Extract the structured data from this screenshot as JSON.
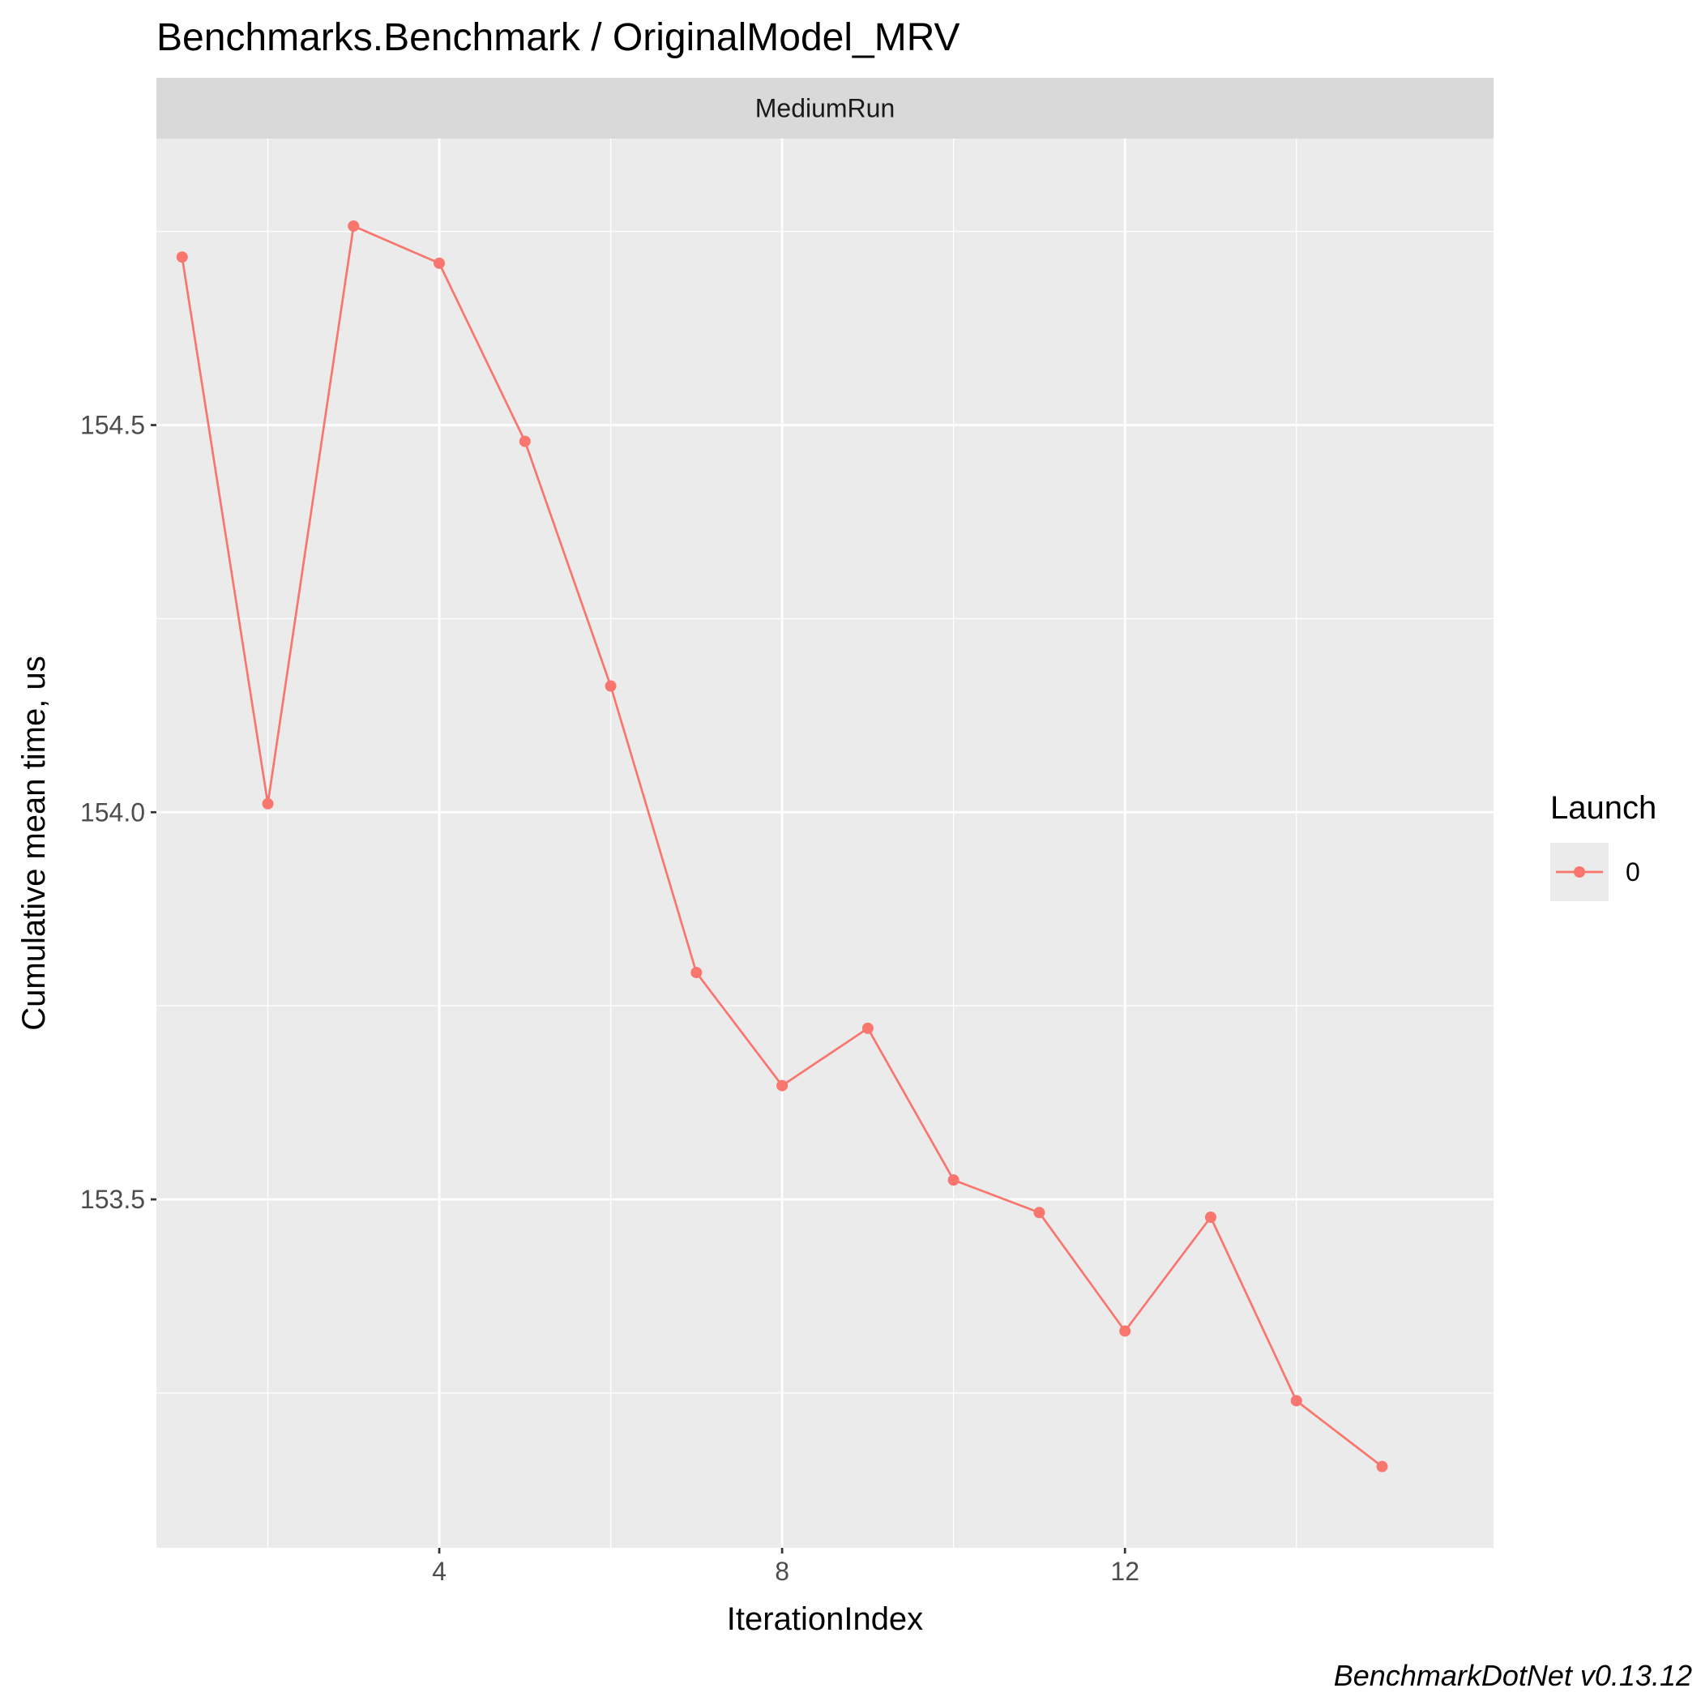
{
  "chart_data": {
    "type": "line",
    "title": "Benchmarks.Benchmark / OriginalModel_MRV",
    "facet_label": "MediumRun",
    "xlabel": "IterationIndex",
    "ylabel": "Cumulative mean time, us",
    "xlim": [
      0.7,
      16.3
    ],
    "ylim": [
      153.05,
      154.87
    ],
    "x_ticks": [
      4,
      8,
      12
    ],
    "x_tick_labels": [
      "4",
      "8",
      "12"
    ],
    "x_minor_ticks": [
      2,
      6,
      10,
      14
    ],
    "y_ticks": [
      153.5,
      154.0,
      154.5
    ],
    "y_tick_labels": [
      "153.5",
      "154.0",
      "154.5"
    ],
    "y_minor_ticks": [
      153.25,
      153.75,
      154.25,
      154.75
    ],
    "grid": true,
    "legend": {
      "title": "Launch",
      "position": "right"
    },
    "series": [
      {
        "name": "0",
        "color": "#F8766D",
        "x": [
          1,
          2,
          3,
          4,
          5,
          6,
          7,
          8,
          9,
          10,
          11,
          12,
          13,
          14,
          15
        ],
        "y": [
          154.717,
          154.011,
          154.757,
          154.709,
          154.479,
          154.163,
          153.793,
          153.647,
          153.721,
          153.525,
          153.483,
          153.33,
          153.477,
          153.24,
          153.155
        ]
      }
    ],
    "caption": "BenchmarkDotNet v0.13.12"
  },
  "colors": {
    "panel_background": "#EBEBEB",
    "strip_background": "#D9D9D9",
    "grid_line": "#FFFFFF",
    "axis_text": "#4D4D4D",
    "text": "#000000"
  }
}
